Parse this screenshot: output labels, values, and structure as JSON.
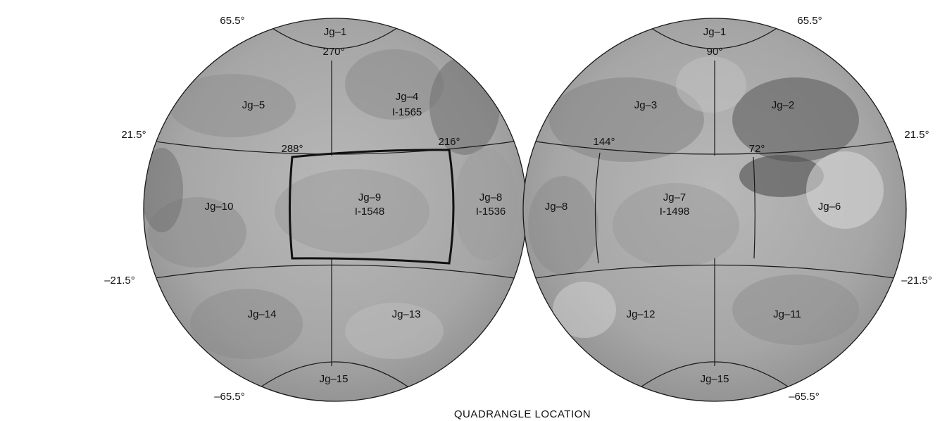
{
  "title": "QUADRANGLE LOCATION",
  "left_hemisphere": {
    "quadrangles": [
      {
        "key": "jg1",
        "name": "Jg–1",
        "sub": "270°"
      },
      {
        "key": "jg5",
        "name": "Jg–5",
        "sub": ""
      },
      {
        "key": "jg4",
        "name": "Jg–4",
        "sub": "I-1565"
      },
      {
        "key": "jg10",
        "name": "Jg–10",
        "sub": ""
      },
      {
        "key": "jg9",
        "name": "Jg–9",
        "sub": "I-1548"
      },
      {
        "key": "jg8",
        "name": "Jg–8",
        "sub": "I-1536"
      },
      {
        "key": "jg14",
        "name": "Jg–14",
        "sub": ""
      },
      {
        "key": "jg13",
        "name": "Jg–13",
        "sub": ""
      },
      {
        "key": "jg15",
        "name": "Jg–15",
        "sub": ""
      }
    ],
    "latitudes": {
      "n65": "65.5°",
      "n21": "21.5°",
      "s21": "–21.5°",
      "s65": "–65.5°"
    },
    "longitudes": {
      "a": "288°",
      "b": "216°"
    }
  },
  "right_hemisphere": {
    "quadrangles": [
      {
        "key": "jg1",
        "name": "Jg–1",
        "sub": "90°"
      },
      {
        "key": "jg3",
        "name": "Jg–3",
        "sub": ""
      },
      {
        "key": "jg2",
        "name": "Jg–2",
        "sub": ""
      },
      {
        "key": "jg8",
        "name": "Jg–8",
        "sub": ""
      },
      {
        "key": "jg7",
        "name": "Jg–7",
        "sub": "I-1498"
      },
      {
        "key": "jg6",
        "name": "Jg–6",
        "sub": ""
      },
      {
        "key": "jg12",
        "name": "Jg–12",
        "sub": ""
      },
      {
        "key": "jg11",
        "name": "Jg–11",
        "sub": ""
      },
      {
        "key": "jg15",
        "name": "Jg–15",
        "sub": ""
      }
    ],
    "latitudes": {
      "n65": "65.5°",
      "n21": "21.5°",
      "s21": "–21.5°",
      "s65": "–65.5°"
    },
    "longitudes": {
      "a": "144°",
      "b": "72°"
    }
  },
  "highlighted_quadrangle": "Jg–9",
  "colors": {
    "surface": "#a9a9a9",
    "surface_light": "#c9c9c9",
    "surface_dark": "#7a7a7a",
    "lines": "#1a1a1a"
  }
}
